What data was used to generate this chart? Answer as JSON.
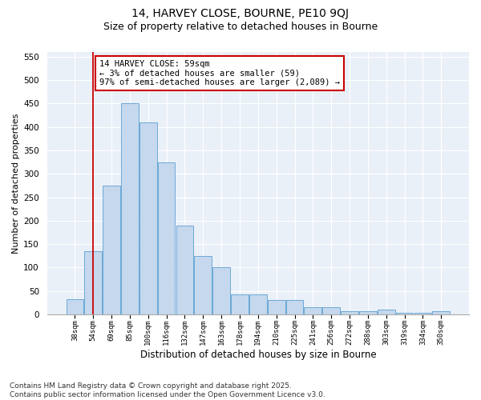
{
  "title1": "14, HARVEY CLOSE, BOURNE, PE10 9QJ",
  "title2": "Size of property relative to detached houses in Bourne",
  "xlabel": "Distribution of detached houses by size in Bourne",
  "ylabel": "Number of detached properties",
  "categories": [
    "38sqm",
    "54sqm",
    "69sqm",
    "85sqm",
    "100sqm",
    "116sqm",
    "132sqm",
    "147sqm",
    "163sqm",
    "178sqm",
    "194sqm",
    "210sqm",
    "225sqm",
    "241sqm",
    "256sqm",
    "272sqm",
    "288sqm",
    "303sqm",
    "319sqm",
    "334sqm",
    "350sqm"
  ],
  "values": [
    33,
    135,
    275,
    450,
    410,
    325,
    190,
    125,
    100,
    43,
    43,
    30,
    30,
    16,
    16,
    7,
    7,
    10,
    4,
    3,
    7
  ],
  "bar_color": "#c5d8ed",
  "bar_edge_color": "#5a9fd4",
  "vline_color": "#cc0000",
  "annotation_text": "14 HARVEY CLOSE: 59sqm\n← 3% of detached houses are smaller (59)\n97% of semi-detached houses are larger (2,089) →",
  "annotation_box_color": "#cc0000",
  "ylim": [
    0,
    560
  ],
  "yticks": [
    0,
    50,
    100,
    150,
    200,
    250,
    300,
    350,
    400,
    450,
    500,
    550
  ],
  "bg_color": "#eaf0f8",
  "footer": "Contains HM Land Registry data © Crown copyright and database right 2025.\nContains public sector information licensed under the Open Government Licence v3.0.",
  "grid_color": "#ffffff",
  "title_fontsize": 10,
  "subtitle_fontsize": 9,
  "annotation_fontsize": 7.5,
  "footer_fontsize": 6.5,
  "ylabel_fontsize": 8,
  "xlabel_fontsize": 8.5,
  "ytick_fontsize": 7.5,
  "xtick_fontsize": 6.5
}
